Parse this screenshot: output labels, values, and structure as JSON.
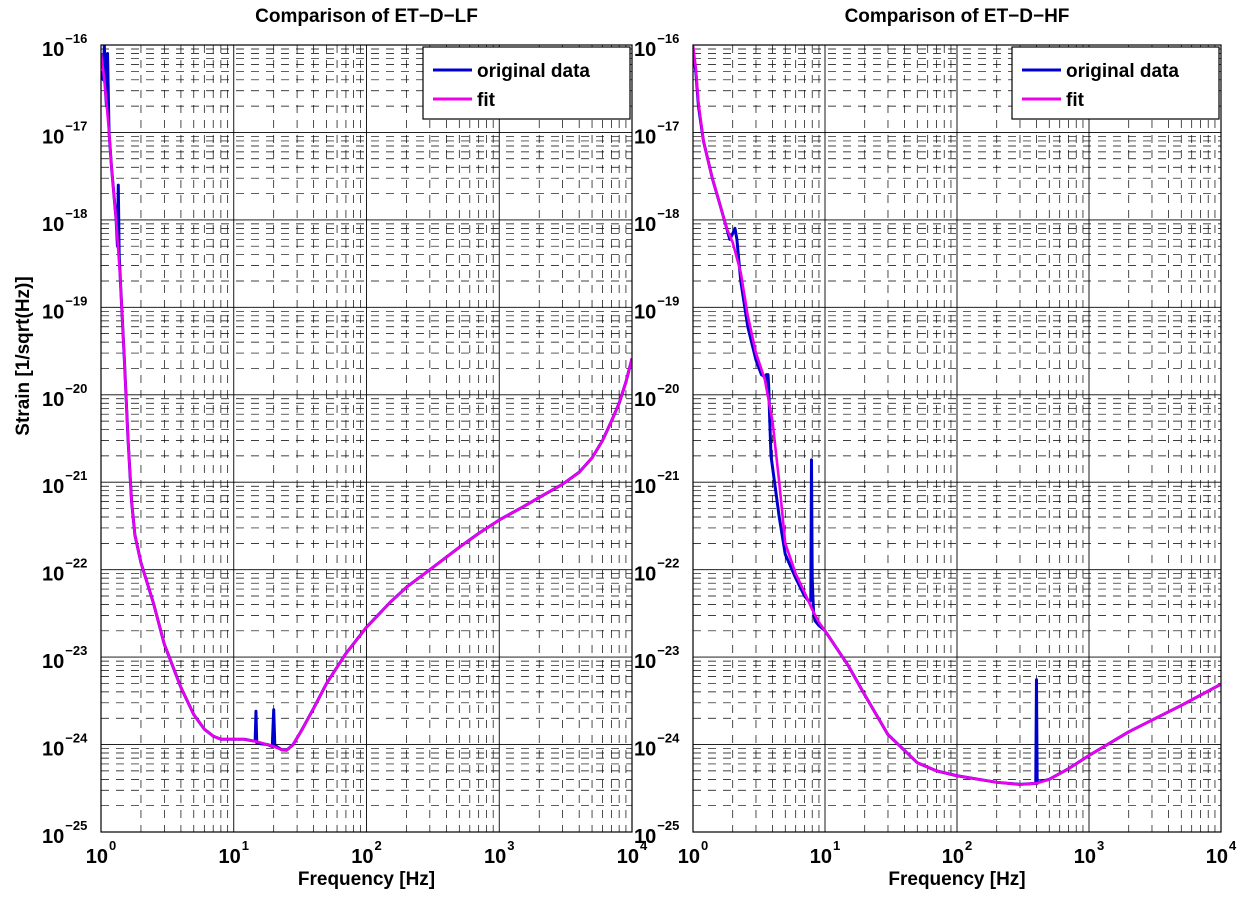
{
  "figure": {
    "ylabel": "Strain [1/sqrt(Hz)]"
  },
  "chart_data": [
    {
      "type": "line",
      "title": "Comparison of ET−D−LF",
      "xlabel": "Frequency [Hz]",
      "ylabel": "Strain [1/sqrt(Hz)]",
      "xscale": "log",
      "yscale": "log",
      "xlim": [
        1,
        10000
      ],
      "ylim": [
        1e-25,
        1e-16
      ],
      "grid": true,
      "legend_position": "top-right",
      "x_tick_labels": [
        {
          "base": "10",
          "exp": "0"
        },
        {
          "base": "10",
          "exp": "1"
        },
        {
          "base": "10",
          "exp": "2"
        },
        {
          "base": "10",
          "exp": "3"
        },
        {
          "base": "10",
          "exp": "4"
        }
      ],
      "y_tick_labels": [
        {
          "base": "10",
          "exp": "−25"
        },
        {
          "base": "10",
          "exp": "−24"
        },
        {
          "base": "10",
          "exp": "−23"
        },
        {
          "base": "10",
          "exp": "−22"
        },
        {
          "base": "10",
          "exp": "−21"
        },
        {
          "base": "10",
          "exp": "−20"
        },
        {
          "base": "10",
          "exp": "−19"
        },
        {
          "base": "10",
          "exp": "−18"
        },
        {
          "base": "10",
          "exp": "−17"
        },
        {
          "base": "10",
          "exp": "−16"
        }
      ],
      "series": [
        {
          "name": "original data",
          "color": "#0000cc",
          "x": [
            1,
            1.04,
            1.06,
            1.08,
            1.1,
            1.12,
            1.15,
            1.2,
            1.3,
            1.33,
            1.35,
            1.37,
            1.4,
            1.5,
            1.6,
            1.7,
            1.8,
            2,
            2.5,
            3,
            4,
            5,
            6,
            7,
            8,
            10,
            12,
            14,
            14.5,
            14.7,
            14.9,
            15.3,
            16,
            18,
            19.5,
            20,
            20.4,
            21,
            23,
            25,
            28,
            32,
            40,
            50,
            70,
            100,
            150,
            200,
            300,
            500,
            700,
            1000,
            1500,
            2000,
            3000,
            4000,
            5000,
            6000,
            7000,
            8000,
            9000,
            10000
          ],
          "y": [
            5e-17,
            4e-17,
            1e-16,
            3e-17,
            2e-17,
            8e-17,
            1e-17,
            4e-18,
            1e-18,
            5e-19,
            2.5e-18,
            4e-19,
            2e-19,
            2.5e-20,
            3e-21,
            6e-22,
            2.5e-22,
            1.2e-22,
            4e-23,
            1.4e-23,
            4.5e-24,
            2.2e-24,
            1.5e-24,
            1.25e-24,
            1.15e-24,
            1.15e-24,
            1.15e-24,
            1.1e-24,
            1.1e-24,
            2.4e-24,
            1.05e-24,
            1.05e-24,
            1.02e-24,
            1e-24,
            9.5e-25,
            2.5e-24,
            9.5e-25,
            9.5e-25,
            8.7e-25,
            8.6e-25,
            1e-24,
            1.4e-24,
            2.6e-24,
            5e-24,
            1.1e-23,
            2.2e-23,
            4.2e-23,
            6.3e-23,
            1e-22,
            1.8e-22,
            2.6e-22,
            3.7e-22,
            5.2e-22,
            6.7e-22,
            9.5e-22,
            1.3e-21,
            1.9e-21,
            3e-21,
            5e-21,
            8e-21,
            1.4e-20,
            2.6e-20
          ]
        },
        {
          "name": "fit",
          "color": "#ee00ee",
          "x": [
            1,
            1.05,
            1.1,
            1.15,
            1.2,
            1.3,
            1.4,
            1.5,
            1.6,
            1.7,
            1.8,
            2,
            2.5,
            3,
            4,
            5,
            6,
            7,
            8,
            10,
            12,
            14,
            16,
            18,
            20,
            23,
            25,
            28,
            32,
            40,
            50,
            70,
            100,
            150,
            200,
            300,
            500,
            700,
            1000,
            1500,
            2000,
            3000,
            4000,
            5000,
            6000,
            7000,
            8000,
            9000,
            10000
          ],
          "y": [
            8e-17,
            4.5e-17,
            2.2e-17,
            1e-17,
            4e-18,
            1e-18,
            2e-19,
            2.5e-20,
            3e-21,
            6e-22,
            2.5e-22,
            1.2e-22,
            4e-23,
            1.4e-23,
            4.5e-24,
            2.2e-24,
            1.5e-24,
            1.25e-24,
            1.15e-24,
            1.15e-24,
            1.15e-24,
            1.1e-24,
            1.05e-24,
            1e-24,
            9.5e-25,
            8.7e-25,
            8.6e-25,
            1e-24,
            1.4e-24,
            2.6e-24,
            5e-24,
            1.1e-23,
            2.2e-23,
            4.2e-23,
            6.3e-23,
            1e-22,
            1.8e-22,
            2.6e-22,
            3.7e-22,
            5.2e-22,
            6.7e-22,
            9.5e-22,
            1.3e-21,
            1.9e-21,
            3e-21,
            5e-21,
            8e-21,
            1.4e-20,
            2.6e-20
          ]
        }
      ]
    },
    {
      "type": "line",
      "title": "Comparison of ET−D−HF",
      "xlabel": "Frequency [Hz]",
      "ylabel": "",
      "xscale": "log",
      "yscale": "log",
      "xlim": [
        1,
        10000
      ],
      "ylim": [
        1e-25,
        1e-16
      ],
      "grid": true,
      "legend_position": "top-right",
      "x_tick_labels": [
        {
          "base": "10",
          "exp": "0"
        },
        {
          "base": "10",
          "exp": "1"
        },
        {
          "base": "10",
          "exp": "2"
        },
        {
          "base": "10",
          "exp": "3"
        },
        {
          "base": "10",
          "exp": "4"
        }
      ],
      "y_tick_labels": [
        {
          "base": "10",
          "exp": "−25"
        },
        {
          "base": "10",
          "exp": "−24"
        },
        {
          "base": "10",
          "exp": "−23"
        },
        {
          "base": "10",
          "exp": "−22"
        },
        {
          "base": "10",
          "exp": "−21"
        },
        {
          "base": "10",
          "exp": "−20"
        },
        {
          "base": "10",
          "exp": "−19"
        },
        {
          "base": "10",
          "exp": "−18"
        },
        {
          "base": "10",
          "exp": "−17"
        },
        {
          "base": "10",
          "exp": "−16"
        }
      ],
      "series": [
        {
          "name": "original data",
          "color": "#0000cc",
          "x": [
            1,
            1.05,
            1.1,
            1.2,
            1.4,
            1.6,
            1.8,
            1.9,
            2,
            2.08,
            2.15,
            2.3,
            2.6,
            3,
            3.3,
            3.5,
            3.6,
            3.65,
            3.7,
            3.75,
            3.8,
            3.9,
            4.5,
            5,
            6,
            7,
            7.6,
            7.8,
            7.9,
            8,
            8.1,
            8.2,
            8.4,
            9,
            10,
            15,
            20,
            30,
            50,
            70,
            100,
            200,
            300,
            395,
            400,
            405,
            410,
            500,
            700,
            1000,
            2000,
            5000,
            10000
          ],
          "y": [
            8e-17,
            5e-17,
            2e-17,
            8e-18,
            3e-18,
            1.5e-18,
            8e-19,
            6e-19,
            7e-19,
            8e-19,
            6e-19,
            2e-19,
            6e-20,
            2.5e-20,
            1.7e-20,
            1.6e-20,
            1.7e-20,
            1.2e-20,
            1.7e-20,
            1.2e-20,
            6e-21,
            2e-21,
            4e-22,
            1.5e-22,
            8e-23,
            5e-23,
            4.3e-23,
            4.5e-23,
            1.8e-21,
            8e-23,
            4.8e-23,
            3.2e-23,
            2.6e-23,
            2.3e-23,
            2e-23,
            8e-24,
            3.7e-24,
            1.3e-24,
            6.2e-25,
            5e-25,
            4.4e-25,
            3.7e-25,
            3.5e-25,
            3.6e-25,
            5.5e-24,
            3.6e-25,
            3.7e-25,
            4e-25,
            5.3e-25,
            7.5e-25,
            1.4e-24,
            2.8e-24,
            4.9e-24
          ]
        },
        {
          "name": "fit",
          "color": "#ee00ee",
          "x": [
            1,
            1.05,
            1.1,
            1.2,
            1.4,
            1.6,
            1.8,
            2,
            2.3,
            2.6,
            3,
            3.5,
            4,
            4.5,
            5,
            6,
            7,
            8,
            9,
            10,
            15,
            20,
            30,
            50,
            70,
            100,
            200,
            300,
            400,
            500,
            700,
            1000,
            2000,
            5000,
            10000
          ],
          "y": [
            1e-16,
            5.5e-17,
            2.2e-17,
            8e-18,
            3e-18,
            1.5e-18,
            8e-19,
            5.5e-19,
            2.5e-19,
            8e-20,
            3e-20,
            1.5e-20,
            5e-21,
            1e-21,
            2e-22,
            9e-23,
            5.5e-23,
            3.5e-23,
            2.5e-23,
            2e-23,
            8e-24,
            3.7e-24,
            1.3e-24,
            6.2e-25,
            5e-25,
            4.4e-25,
            3.7e-25,
            3.5e-25,
            3.6e-25,
            4e-25,
            5.3e-25,
            7.5e-25,
            1.4e-24,
            2.8e-24,
            4.9e-24
          ]
        }
      ]
    }
  ]
}
